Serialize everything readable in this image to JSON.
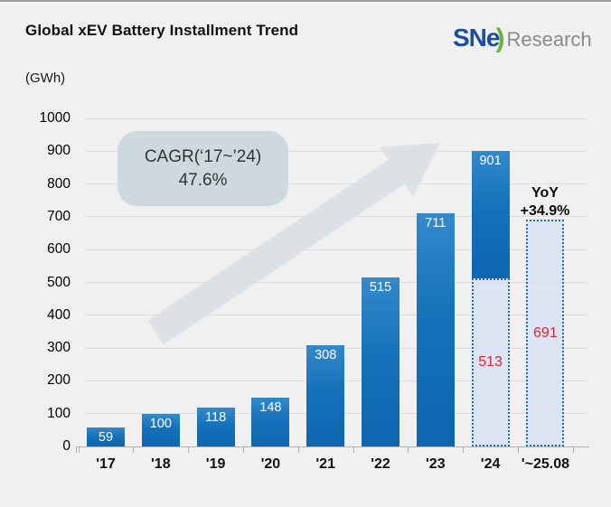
{
  "header": {
    "title": "Global xEV Battery Installment Trend",
    "unit_label": "(GWh)",
    "logo": {
      "sne": "SNe",
      "swoosh": ")",
      "research": "Research"
    }
  },
  "annotations": {
    "cagr": {
      "line1": "CAGR(‘17~’24)",
      "line2": "47.6%"
    },
    "yoy": {
      "line1": "YoY",
      "line2": "+34.9%"
    }
  },
  "chart_data": {
    "type": "bar",
    "title": "Global xEV Battery Installment Trend",
    "ylabel": "(GWh)",
    "ylim": [
      0,
      1000
    ],
    "ytick_step": 100,
    "grid": true,
    "legend": "none",
    "categories": [
      "'17",
      "'18",
      "'19",
      "'20",
      "'21",
      "'22",
      "'23",
      "'24",
      "'~25.08"
    ],
    "bars": [
      {
        "category": "'17",
        "solid": 59,
        "solid_label": "59"
      },
      {
        "category": "'18",
        "solid": 100,
        "solid_label": "100"
      },
      {
        "category": "'19",
        "solid": 118,
        "solid_label": "118"
      },
      {
        "category": "'20",
        "solid": 148,
        "solid_label": "148"
      },
      {
        "category": "'21",
        "solid": 308,
        "solid_label": "308"
      },
      {
        "category": "'22",
        "solid": 515,
        "solid_label": "515"
      },
      {
        "category": "'23",
        "solid": 711,
        "solid_label": "711"
      },
      {
        "category": "'24",
        "solid": 901,
        "solid_label": "901",
        "dotted": 513,
        "dotted_label": "513"
      },
      {
        "category": "'~25.08",
        "dotted": 691,
        "dotted_label": "691"
      }
    ],
    "colors": {
      "bar_solid": "#1472BA",
      "dotted_border": "#1F6CB4",
      "dotted_fill": "#DFE7F6",
      "value_label_solid": "#FFFFFF",
      "value_label_dotted": "#D92630",
      "callout_bg": "#CDD9DE",
      "arrow": "#D5DBE1",
      "background": "#F0F0F0"
    }
  }
}
